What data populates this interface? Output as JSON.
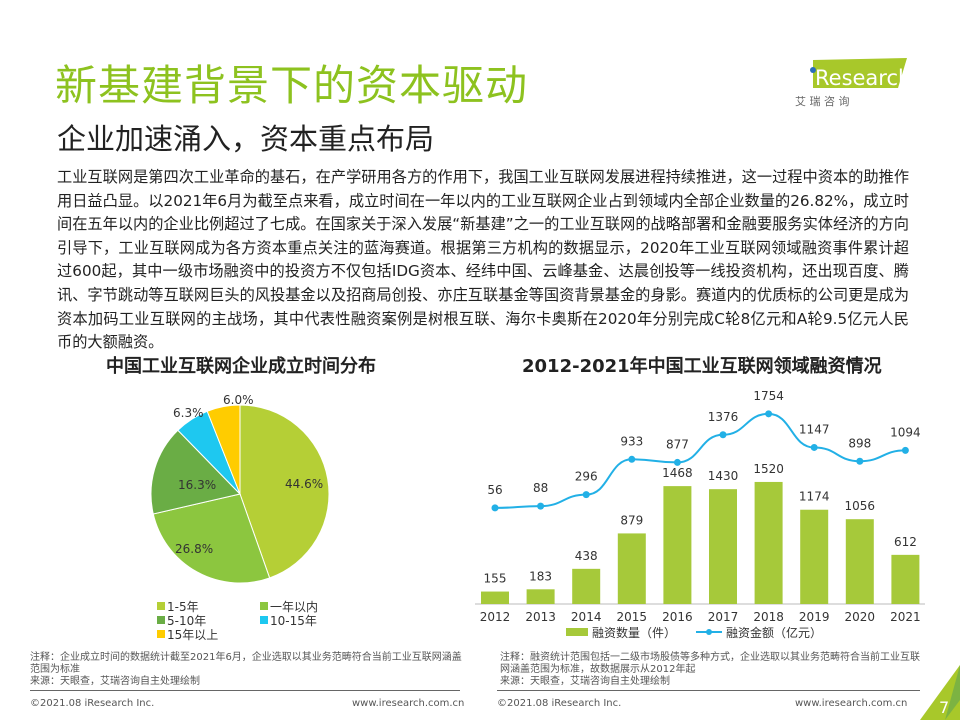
{
  "header": {
    "title": "新基建背景下的资本驱动",
    "subtitle": "企业加速涌入，资本重点布局",
    "logo_text": "iResearch",
    "logo_cn": "艾 瑞 咨 询"
  },
  "body_text": "工业互联网是第四次工业革命的基石，在产学研用各方的作用下，我国工业互联网发展进程持续推进，这一过程中资本的助推作用日益凸显。以2021年6月为截至点来看，成立时间在一年以内的工业互联网企业占到领域内全部企业数量的26.82%，成立时间在五年以内的企业比例超过了七成。在国家关于深入发展“新基建”之一的工业互联网的战略部署和金融要服务实体经济的方向引导下，工业互联网成为各方资本重点关注的蓝海赛道。根据第三方机构的数据显示，2020年工业互联网领域融资事件累计超过600起，其中一级市场融资中的投资方不仅包括IDG资本、经纬中国、云峰基金、达晨创投等一线投资机构，还出现百度、腾讯、字节跳动等互联网巨头的风投基金以及招商局创投、亦庄互联基金等国资背景基金的身影。赛道内的优质标的公司更是成为资本加码工业互联网的主战场，其中代表性融资案例是树根互联、海尔卡奥斯在2020年分别完成C轮8亿元和A轮9.5亿元人民币的大额融资。",
  "chart_data": [
    {
      "type": "pie",
      "title": "中国工业互联网企业成立时间分布",
      "slices": [
        {
          "label": "1-5年",
          "value": 44.6,
          "display": "44.6%",
          "color": "#b5cf36"
        },
        {
          "label": "一年以内",
          "value": 26.8,
          "display": "26.8%",
          "color": "#8cc63f"
        },
        {
          "label": "5-10年",
          "value": 16.3,
          "display": "16.3%",
          "color": "#6aad45"
        },
        {
          "label": "10-15年",
          "value": 6.3,
          "display": "6.3%",
          "color": "#1ec8f0"
        },
        {
          "label": "15年以上",
          "value": 6.0,
          "display": "6.0%",
          "color": "#ffcc00"
        }
      ]
    },
    {
      "type": "bar+line",
      "title": "2012-2021年中国工业互联网领域融资情况",
      "categories": [
        "2012",
        "2013",
        "2014",
        "2015",
        "2016",
        "2017",
        "2018",
        "2019",
        "2020",
        "2021"
      ],
      "series": [
        {
          "name": "融资数量（件）",
          "type": "bar",
          "color": "#a6c93a",
          "values": [
            155,
            183,
            438,
            879,
            1468,
            1430,
            1520,
            1174,
            1056,
            612
          ]
        },
        {
          "name": "融资金额（亿元）",
          "type": "line",
          "color": "#22b0e6",
          "values": [
            56,
            88,
            296,
            933,
            877,
            1376,
            1754,
            1147,
            898,
            1094
          ]
        }
      ]
    }
  ],
  "notes": {
    "left_note": "注释：企业成立时间的数据统计截至2021年6月，企业选取以其业务范畴符合当前工业互联网涵盖范围为标准",
    "left_source": "来源：天眼查，艾瑞咨询自主处理绘制",
    "right_note": "注释：融资统计范围包括一二级市场股债等多种方式，企业选取以其业务范畴符合当前工业互联网涵盖范围为标准，故数据展示从2012年起",
    "right_source": "来源：天眼查，艾瑞咨询自主处理绘制"
  },
  "footer": {
    "copyright": "©2021.08 iResearch Inc.",
    "url": "www.iresearch.com.cn",
    "page": "7"
  }
}
